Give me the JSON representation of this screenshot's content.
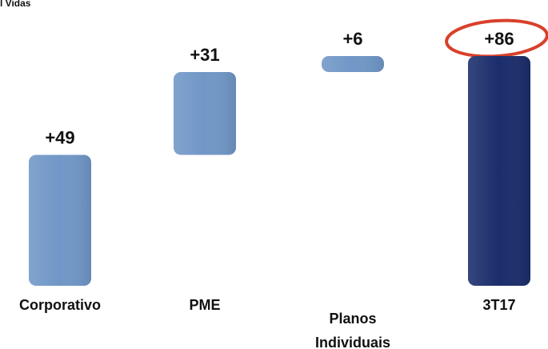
{
  "chart_data": {
    "type": "waterfall",
    "title": "l Vidas",
    "categories": [
      "Corporativo",
      "PME",
      "Planos Individuais",
      "3T17"
    ],
    "values": [
      49,
      31,
      6,
      86
    ],
    "value_labels": [
      "+49",
      "+31",
      "+6",
      "+86"
    ],
    "is_total": [
      false,
      false,
      false,
      true
    ],
    "colors": [
      "#7097c7",
      "#7097c7",
      "#7097c7",
      "#1b2d6b"
    ]
  }
}
